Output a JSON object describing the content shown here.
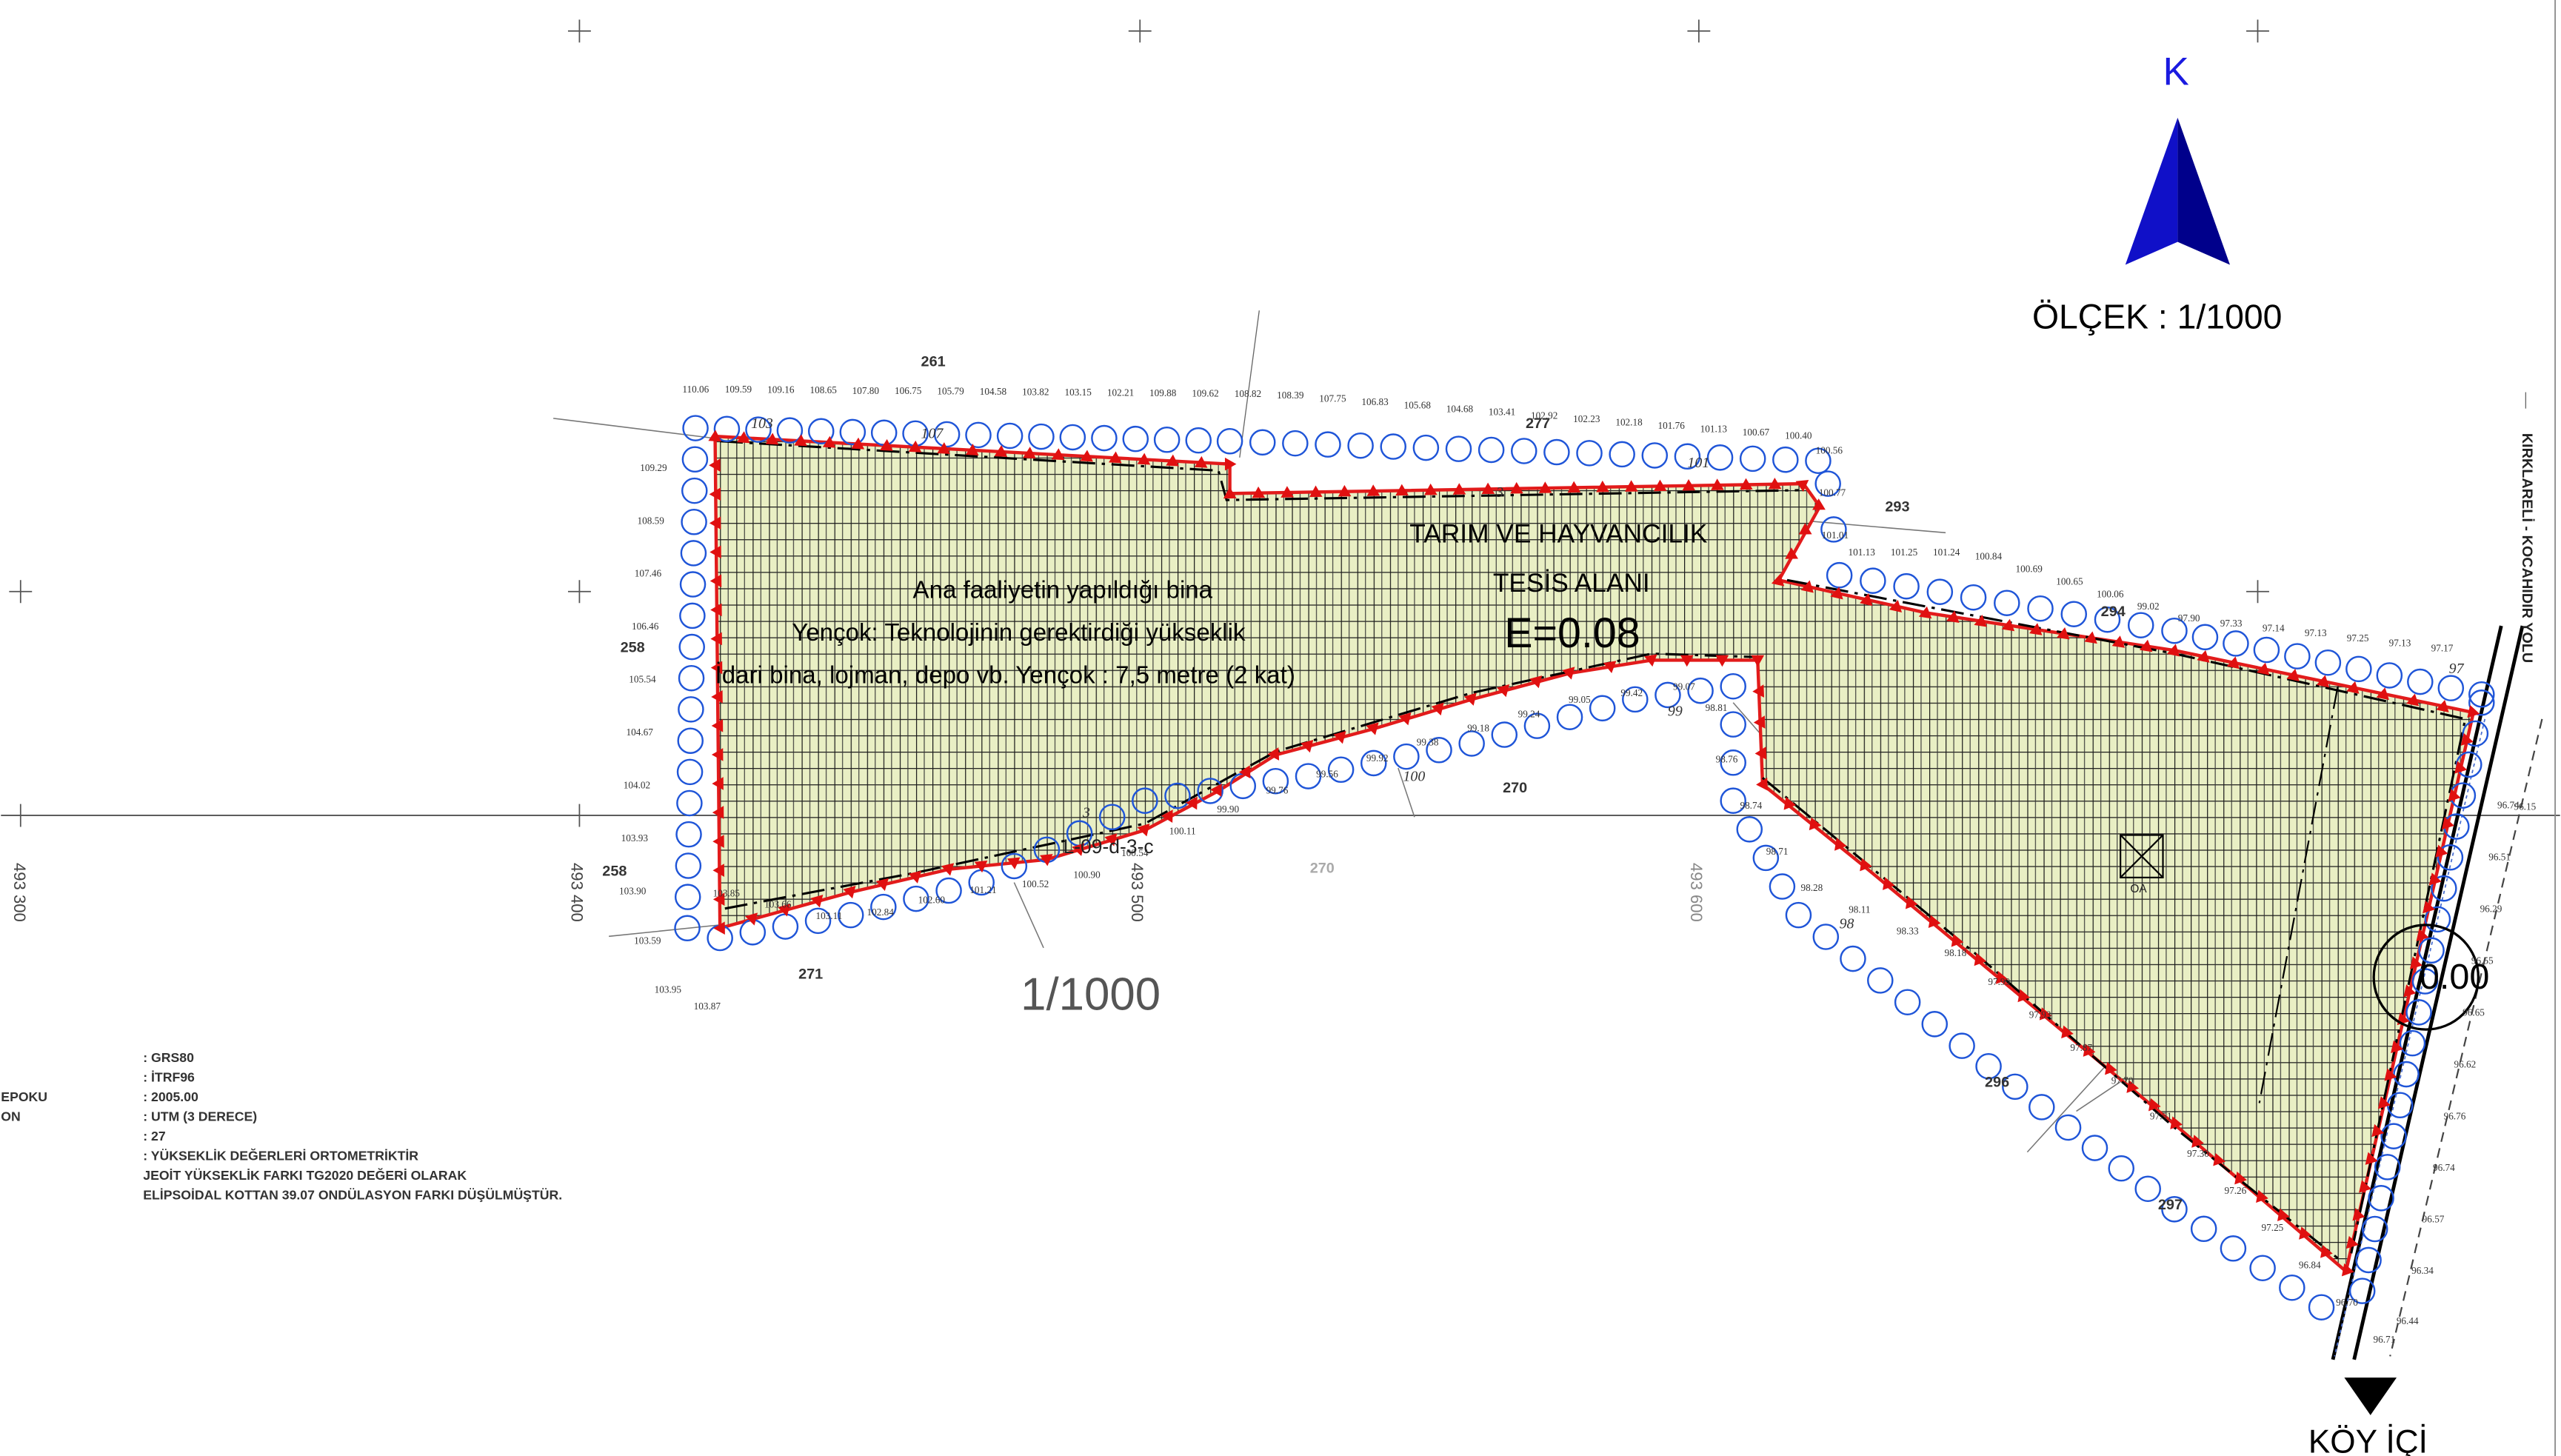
{
  "north_label": "K",
  "scale_text": "ÖLÇEK : 1/1000",
  "scale_text_center": "1/1000",
  "zone_title_line1": "TARIM VE HAYVANCILIK",
  "zone_title_line2": "TESİS ALANI",
  "zone_ratio": "E=0.08",
  "building_line1": "Ana faaliyetin yapıldığı bina",
  "building_line2": "Yençok: Teknolojinin gerektirdiği yükseklik",
  "building_line3": "İdari bina, lojman, depo vb. Yençok : 7,5 metre (2 kat)",
  "sheet_code": "L-09-d-3-c",
  "oa_label": "ÖA",
  "village_label": "KÖY İÇİ",
  "road_label": "KIRKLARELİ - KOCAHIDIR YOLU",
  "road_code_label": "0.00",
  "grid_labels": {
    "x300": "493 300",
    "x400": "493 400",
    "x500": "493 500",
    "x600": "493 600"
  },
  "parcels": {
    "p261": "261",
    "p277": "277",
    "p293": "293",
    "p294": "294",
    "p258a": "258",
    "p258b": "258",
    "p270a": "270",
    "p270b": "270",
    "p271": "271",
    "p296": "296",
    "p297": "297"
  },
  "contours": {
    "c107": "107",
    "c103": "103",
    "c101": "101",
    "c100": "100",
    "c99": "99",
    "c98": "98",
    "c97": "97",
    "c3a": "3",
    "c3b": "3"
  },
  "legend": {
    "ellipsoid": ": GRS80",
    "datum": ": İTRF96",
    "epoch_label": "EPOKU",
    "epoch": ": 2005.00",
    "projection_label": "ON",
    "projection": ": UTM (3 DERECE)",
    "meridian": ": 27",
    "note1": ": YÜKSEKLİK DEĞERLERİ ORTOMETRİKTİR",
    "note2": "JEOİT YÜKSEKLİK FARKI TG2020 DEĞERİ OLARAK",
    "note3": "ELİPSOİDAL KOTTAN 39.07   ONDÜLASYON FARKI DÜŞÜLMÜŞTÜR."
  },
  "spot_heights_top": [
    "110.06",
    "109.59",
    "109.16",
    "108.65",
    "107.80",
    "106.75",
    "105.79",
    "104.58",
    "103.82",
    "103.15",
    "102.21",
    "109.88",
    "109.62",
    "108.82",
    "108.39",
    "107.75",
    "106.83",
    "105.68",
    "104.68",
    "103.41",
    "102.92",
    "102.23",
    "102.18",
    "101.76",
    "101.13",
    "100.67",
    "100.40",
    "100.56",
    "100.77",
    "101.01",
    "101.13",
    "101.25",
    "101.24",
    "100.84",
    "100.69",
    "100.65",
    "100.06",
    "99.02",
    "97.90",
    "97.33",
    "97.14",
    "97.13",
    "97.25",
    "97.13",
    "97.17"
  ],
  "spot_heights_left": [
    "109.29",
    "108.59",
    "107.46",
    "106.46",
    "105.54",
    "104.67",
    "104.02",
    "103.93",
    "103.90",
    "103.59",
    "103.95",
    "103.87"
  ],
  "spot_heights_bottom": [
    "103.85",
    "103.66",
    "103.11",
    "102.84",
    "102.60",
    "101.21",
    "100.52",
    "100.90",
    "100.54",
    "100.11",
    "99.90",
    "99.76",
    "99.56",
    "99.92",
    "99.38",
    "99.18",
    "99.24",
    "99.05",
    "99.42",
    "99.07",
    "98.81",
    "98.76",
    "98.74",
    "98.71",
    "98.28",
    "98.11",
    "98.33",
    "98.18",
    "97.99",
    "97.93",
    "97.87",
    "97.70",
    "97.51",
    "97.30",
    "97.26",
    "97.25",
    "96.84",
    "96.70",
    "96.71",
    "96.44",
    "96.34",
    "96.57",
    "96.74",
    "96.76",
    "96.62",
    "96.65",
    "96.55",
    "96.29",
    "96.51",
    "96.74",
    "96.15"
  ]
}
